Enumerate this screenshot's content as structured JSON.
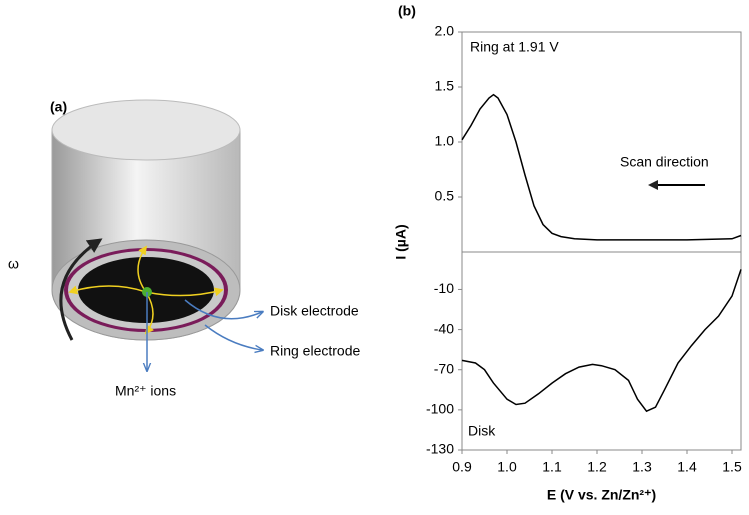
{
  "panel_a": {
    "label": "(a)",
    "omega": "ω",
    "disk": "Disk electrode",
    "ring": "Ring electrode",
    "ions": "Mn²⁺ ions"
  },
  "panel_b_label": "(b)",
  "chart_data": [
    {
      "type": "line",
      "annotations": [
        "Ring at 1.91 V",
        "Scan direction"
      ],
      "color": "#000000",
      "xlim": [
        0.9,
        1.52
      ],
      "ylim": [
        0,
        2.0
      ],
      "yticks": [
        0.5,
        {
          "value": 1,
          "label": "1.0"
        },
        1.5,
        {
          "value": 2,
          "label": "2.0"
        }
      ],
      "x": [
        0.9,
        0.92,
        0.94,
        0.96,
        0.97,
        0.98,
        1.0,
        1.02,
        1.04,
        1.06,
        1.08,
        1.1,
        1.12,
        1.15,
        1.2,
        1.3,
        1.4,
        1.5,
        1.52
      ],
      "values": [
        1.02,
        1.15,
        1.3,
        1.4,
        1.43,
        1.4,
        1.25,
        1.0,
        0.7,
        0.42,
        0.25,
        0.17,
        0.14,
        0.12,
        0.11,
        0.11,
        0.11,
        0.12,
        0.15
      ]
    },
    {
      "type": "line",
      "annotations": [
        "Disk"
      ],
      "color": "#000000",
      "xlabel": "E (V vs. Zn/Zn²⁺)",
      "ylabel": "I (µA)",
      "xlim": [
        0.9,
        1.52
      ],
      "ylim": [
        -130,
        18
      ],
      "xticks": [
        0.9,
        {
          "value": 1,
          "label": "1.0"
        },
        1.1,
        1.2,
        1.3,
        1.4,
        1.5
      ],
      "yticks": [
        -130,
        -100,
        -70,
        -40,
        -10
      ],
      "x": [
        0.9,
        0.93,
        0.95,
        0.97,
        1.0,
        1.02,
        1.04,
        1.07,
        1.1,
        1.13,
        1.16,
        1.19,
        1.21,
        1.24,
        1.27,
        1.29,
        1.31,
        1.33,
        1.35,
        1.38,
        1.41,
        1.44,
        1.47,
        1.5,
        1.52
      ],
      "values": [
        -63,
        -65,
        -70,
        -80,
        -92,
        -96,
        -95,
        -88,
        -80,
        -73,
        -68,
        -66,
        -67,
        -70,
        -78,
        -92,
        -101,
        -98,
        -85,
        -65,
        -52,
        -40,
        -30,
        -15,
        5
      ]
    }
  ]
}
